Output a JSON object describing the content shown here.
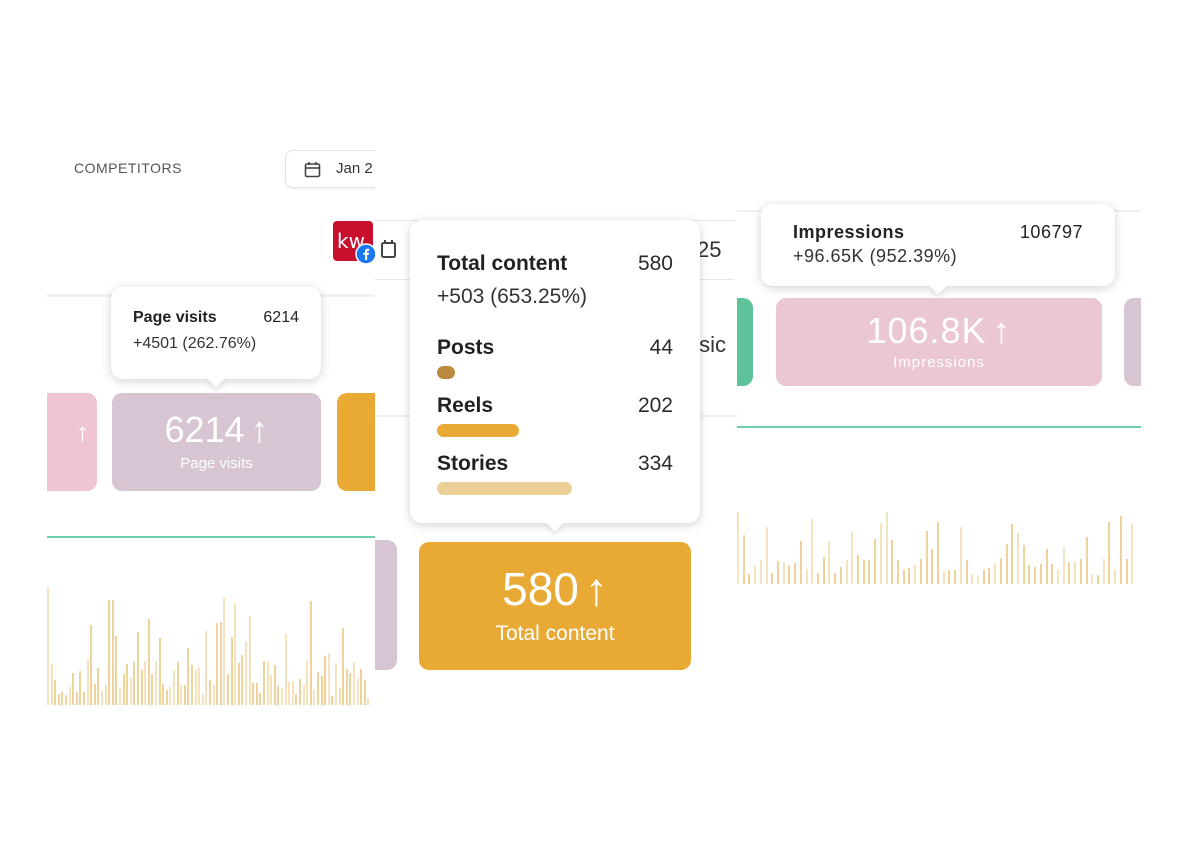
{
  "left_panel": {
    "competitors_label": "COMPETITORS",
    "date_label": "Jan 2",
    "avatar_initials": "kw",
    "tooltip": {
      "title": "Page visits",
      "value": "6214",
      "change": "+4501 (262.76%)"
    },
    "card": {
      "value": "6214",
      "label": "Page visits",
      "color": "#d7c5d3"
    }
  },
  "middle_panel": {
    "partial_date": "25",
    "partial_text": "tsic",
    "tooltip": {
      "title": "Total content",
      "value": "580",
      "change": "+503 (653.25%)",
      "breakdown": [
        {
          "label": "Posts",
          "value": "44",
          "color": "#b98a3e"
        },
        {
          "label": "Reels",
          "value": "202",
          "color": "#e8a935"
        },
        {
          "label": "Stories",
          "value": "334",
          "color": "#eccf96"
        }
      ]
    },
    "card": {
      "value": "580",
      "label": "Total content",
      "color": "#e8a935"
    }
  },
  "right_panel": {
    "tooltip": {
      "title": "Impressions",
      "value": "106797",
      "change": "+96.65K (952.39%)"
    },
    "card": {
      "value": "106.8K",
      "label": "Impressions",
      "color": "#ebc7d3"
    }
  },
  "colors": {
    "accent_green": "#6ccfa8",
    "pink_card": "#efc5d1",
    "orange_card": "#e8a935",
    "mauve_card": "#d7c5d3",
    "chart_bar": "#efd39a"
  },
  "icons": [
    "calendar-icon",
    "arrow-up-icon",
    "facebook-badge-icon"
  ]
}
